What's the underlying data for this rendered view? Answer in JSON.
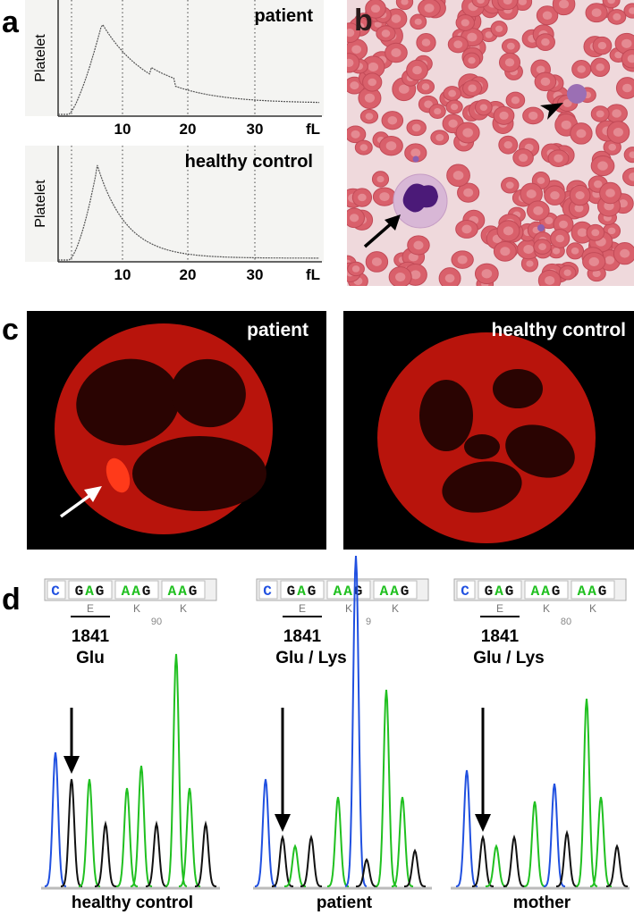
{
  "panel_a": {
    "label": "a",
    "plots": [
      {
        "title": "patient",
        "y_label": "Platelet",
        "x_ticks": [
          "10",
          "20",
          "30",
          "fL"
        ]
      },
      {
        "title": "healthy control",
        "y_label": "Platelet",
        "x_ticks": [
          "10",
          "20",
          "30",
          "fL"
        ]
      }
    ]
  },
  "panel_b": {
    "label": "b"
  },
  "panel_c": {
    "label": "c",
    "images": [
      {
        "title": "patient"
      },
      {
        "title": "healthy control"
      }
    ]
  },
  "panel_d": {
    "label": "d",
    "traces": [
      {
        "bases": [
          "C",
          "GAG",
          "AAG",
          "AAG"
        ],
        "amino_acids": [
          "E",
          "K",
          "K"
        ],
        "position": "90",
        "codon": "1841",
        "residue": "Glu",
        "sample": "healthy control"
      },
      {
        "bases": [
          "C",
          "GAG",
          "AAG",
          "AAG"
        ],
        "amino_acids": [
          "E",
          "K",
          "K"
        ],
        "position": "9",
        "codon": "1841",
        "residue": "Glu / Lys",
        "sample": "patient"
      },
      {
        "bases": [
          "C",
          "GAG",
          "AAG",
          "AAG"
        ],
        "amino_acids": [
          "E",
          "K",
          "K"
        ],
        "position": "80",
        "codon": "1841",
        "residue": "Glu / Lys",
        "sample": "mother"
      }
    ]
  }
}
